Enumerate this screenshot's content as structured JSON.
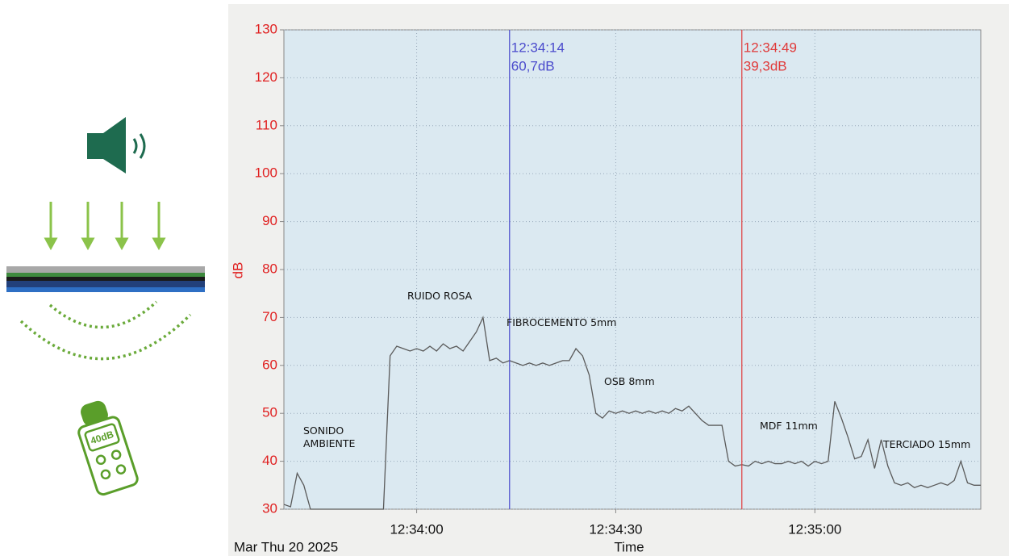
{
  "chart_data": {
    "type": "line",
    "y_label": "dB",
    "x_label": "Time",
    "date_label": "Mar Thu 20 2025",
    "ylim": [
      30,
      130
    ],
    "yticks": [
      30,
      40,
      50,
      60,
      70,
      80,
      90,
      100,
      110,
      120,
      130
    ],
    "xlim": [
      "12:33:40",
      "12:35:25"
    ],
    "xticks": [
      "12:34:00",
      "12:34:30",
      "12:35:00"
    ],
    "grid": true,
    "x": [
      "12:33:40",
      "12:33:41",
      "12:33:42",
      "12:33:43",
      "12:33:44",
      "12:33:45",
      "12:33:46",
      "12:33:47",
      "12:33:48",
      "12:33:49",
      "12:33:50",
      "12:33:51",
      "12:33:52",
      "12:33:53",
      "12:33:54",
      "12:33:55",
      "12:33:56",
      "12:33:57",
      "12:33:58",
      "12:33:59",
      "12:34:00",
      "12:34:01",
      "12:34:02",
      "12:34:03",
      "12:34:04",
      "12:34:05",
      "12:34:06",
      "12:34:07",
      "12:34:08",
      "12:34:09",
      "12:34:10",
      "12:34:11",
      "12:34:12",
      "12:34:13",
      "12:34:14",
      "12:34:15",
      "12:34:16",
      "12:34:17",
      "12:34:18",
      "12:34:19",
      "12:34:20",
      "12:34:21",
      "12:34:22",
      "12:34:23",
      "12:34:24",
      "12:34:25",
      "12:34:26",
      "12:34:27",
      "12:34:28",
      "12:34:29",
      "12:34:30",
      "12:34:31",
      "12:34:32",
      "12:34:33",
      "12:34:34",
      "12:34:35",
      "12:34:36",
      "12:34:37",
      "12:34:38",
      "12:34:39",
      "12:34:40",
      "12:34:41",
      "12:34:42",
      "12:34:43",
      "12:34:44",
      "12:34:45",
      "12:34:46",
      "12:34:47",
      "12:34:48",
      "12:34:49",
      "12:34:50",
      "12:34:51",
      "12:34:52",
      "12:34:53",
      "12:34:54",
      "12:34:55",
      "12:34:56",
      "12:34:57",
      "12:34:58",
      "12:34:59",
      "12:35:00",
      "12:35:01",
      "12:35:02",
      "12:35:03",
      "12:35:04",
      "12:35:05",
      "12:35:06",
      "12:35:07",
      "12:35:08",
      "12:35:09",
      "12:35:10",
      "12:35:11",
      "12:35:12",
      "12:35:13",
      "12:35:14",
      "12:35:15",
      "12:35:16",
      "12:35:17",
      "12:35:18",
      "12:35:19",
      "12:35:20",
      "12:35:21",
      "12:35:22",
      "12:35:23",
      "12:35:24",
      "12:35:25"
    ],
    "series": [
      {
        "name": "dB",
        "color": "#5a5a5a",
        "values": [
          31,
          30.5,
          37.5,
          35,
          30,
          30,
          30,
          30,
          30,
          30,
          30,
          30,
          30,
          30,
          30,
          30,
          62,
          64,
          63.5,
          63,
          63.5,
          63,
          64,
          63,
          64.5,
          63.5,
          64,
          63,
          65,
          67,
          70,
          61,
          61.5,
          60.5,
          61,
          60.5,
          60,
          60.5,
          60,
          60.5,
          60,
          60.5,
          61,
          61,
          63.5,
          62,
          58,
          50,
          49,
          50.5,
          50,
          50.5,
          50,
          50.5,
          50,
          50.5,
          50,
          50.5,
          50,
          51,
          50.5,
          51.5,
          50,
          48.5,
          47.5,
          47.5,
          47.5,
          40,
          39,
          39.3,
          39,
          40,
          39.5,
          40,
          39.5,
          39.5,
          40,
          39.5,
          40,
          39,
          40,
          39.5,
          40,
          52.5,
          49,
          45,
          40.5,
          41,
          44.5,
          38.5,
          44.5,
          39,
          35.5,
          35,
          35.5,
          34.5,
          35,
          34.5,
          35,
          35.5,
          35,
          36,
          40,
          35.5,
          35,
          35
        ]
      }
    ],
    "cursors": [
      {
        "time": "12:34:14",
        "value": 60.7,
        "value_label": "60,7dB",
        "color": "#4a4acc"
      },
      {
        "time": "12:34:49",
        "value": 39.3,
        "value_label": "39,3dB",
        "color": "#e03a3a"
      }
    ],
    "annotations": [
      "SONIDO AMBIENTE",
      "RUIDO ROSA",
      "FIBROCEMENTO 5mm",
      "OSB 8mm",
      "MDF 11mm",
      "TERCIADO 15mm"
    ]
  }
}
